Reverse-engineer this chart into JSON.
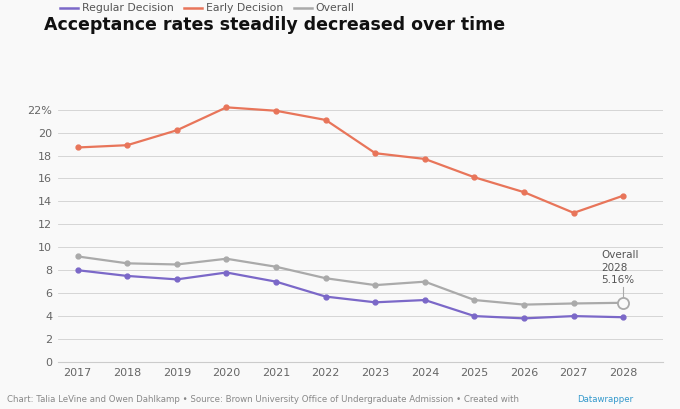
{
  "title": "Acceptance rates steadily decreased over time",
  "years": [
    2017,
    2018,
    2019,
    2020,
    2021,
    2022,
    2023,
    2024,
    2025,
    2026,
    2027,
    2028
  ],
  "regular_decision": [
    8.0,
    7.5,
    7.2,
    7.8,
    7.0,
    5.7,
    5.2,
    5.4,
    4.0,
    3.8,
    4.0,
    3.9
  ],
  "early_decision": [
    18.7,
    18.9,
    20.2,
    22.2,
    21.9,
    21.1,
    18.2,
    17.7,
    16.1,
    14.8,
    13.0,
    14.5
  ],
  "overall": [
    9.2,
    8.6,
    8.5,
    9.0,
    8.3,
    7.3,
    6.7,
    7.0,
    5.4,
    5.0,
    5.1,
    5.16
  ],
  "regular_color": "#7b68c8",
  "early_color": "#e8755a",
  "overall_color": "#aaaaaa",
  "bg_color": "#f9f9f9",
  "ylim": [
    0,
    23
  ],
  "yticks": [
    0,
    2,
    4,
    6,
    8,
    10,
    12,
    14,
    16,
    18,
    20,
    22
  ],
  "ytick_labels": [
    "0",
    "2",
    "4",
    "6",
    "8",
    "10",
    "12",
    "14",
    "16",
    "18",
    "20",
    "22%"
  ],
  "footer_main": "Chart: Talia LeVine and Owen Dahlkamp • Source: Brown University Office of Undergraduate Admission • Created with ",
  "footer_link": "Datawrapper",
  "footer_color": "#888888",
  "footer_link_color": "#3399cc"
}
